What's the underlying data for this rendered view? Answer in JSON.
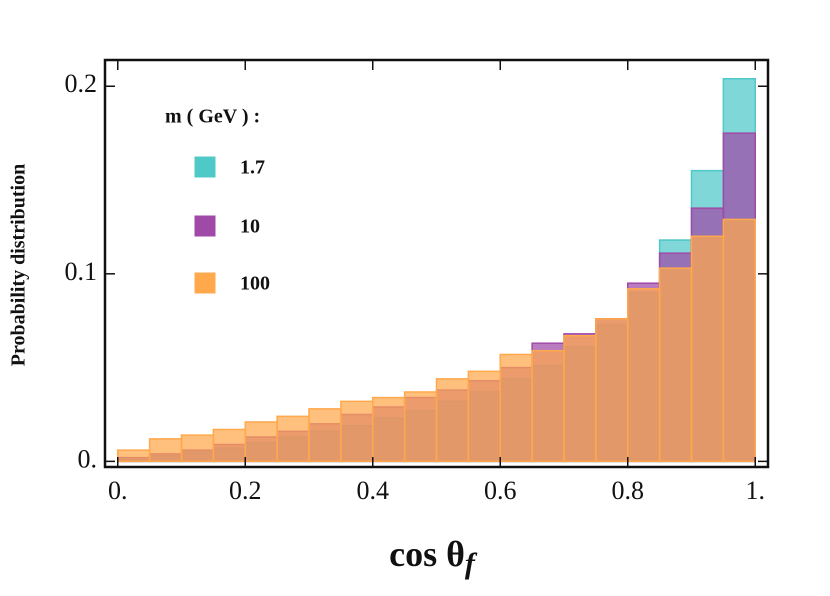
{
  "chart_data": {
    "type": "histogram",
    "xlabel": "cos θ",
    "xlabel_sub": "f",
    "ylabel": "Probability distribution",
    "legend_title": "m ( GeV ) :",
    "bins": [
      0,
      0.05,
      0.1,
      0.15,
      0.2,
      0.25,
      0.3,
      0.35,
      0.4,
      0.45,
      0.5,
      0.55,
      0.6,
      0.65,
      0.7,
      0.75,
      0.8,
      0.85,
      0.9,
      0.95,
      1
    ],
    "series": [
      {
        "name": "1.7",
        "color": "#4fc8c8",
        "values": [
          0.001,
          0.003,
          0.005,
          0.007,
          0.01,
          0.013,
          0.016,
          0.019,
          0.023,
          0.027,
          0.032,
          0.037,
          0.044,
          0.051,
          0.061,
          0.073,
          0.09,
          0.118,
          0.155,
          0.204
        ]
      },
      {
        "name": "10",
        "color": "#a04aa8",
        "values": [
          0.002,
          0.004,
          0.006,
          0.009,
          0.013,
          0.016,
          0.02,
          0.025,
          0.029,
          0.034,
          0.038,
          0.043,
          0.05,
          0.063,
          0.068,
          0.076,
          0.095,
          0.111,
          0.135,
          0.175
        ]
      },
      {
        "name": "100",
        "color": "#ffa84c",
        "values": [
          0.006,
          0.012,
          0.014,
          0.017,
          0.021,
          0.024,
          0.028,
          0.032,
          0.034,
          0.037,
          0.044,
          0.048,
          0.057,
          0.059,
          0.067,
          0.076,
          0.092,
          0.103,
          0.12,
          0.129
        ]
      }
    ],
    "xlim": [
      -0.02,
      1.02
    ],
    "ylim": [
      -0.003,
      0.214
    ],
    "xticks": [
      {
        "value": 0,
        "label": "0."
      },
      0.2,
      0.4,
      0.6,
      0.8,
      {
        "value": 1,
        "label": "1."
      }
    ],
    "yticks": [
      {
        "value": 0,
        "label": "0."
      },
      0.1,
      0.2
    ]
  }
}
